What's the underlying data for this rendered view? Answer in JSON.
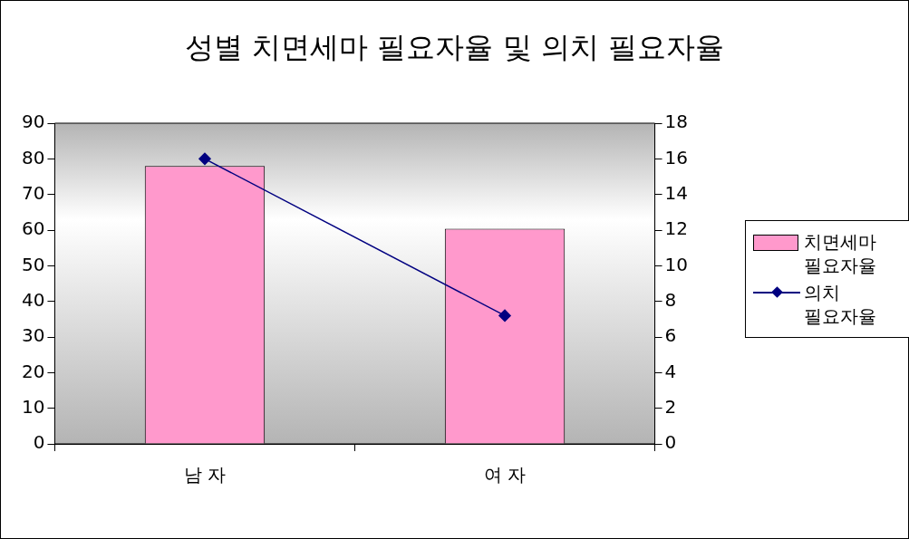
{
  "chart_data": {
    "type": "bar",
    "title": "성별 치면세마 필요자율 및 의치 필요자율",
    "categories": [
      "남 자",
      "여 자"
    ],
    "series": [
      {
        "name": "치면세마 필요자율",
        "color": "#ff99cc",
        "values": [
          78,
          60.4
        ]
      },
      {
        "name": "의치 필요자율",
        "type": "line",
        "color": "#000080",
        "axis": "y2",
        "marker": "diamond",
        "values": [
          16,
          7.2
        ]
      }
    ],
    "ylim": [
      0,
      90
    ],
    "yticks": [
      0,
      10,
      20,
      30,
      40,
      50,
      60,
      70,
      80,
      90
    ],
    "y2lim": [
      0,
      18
    ],
    "y2ticks": [
      0,
      2,
      4,
      6,
      8,
      10,
      12,
      14,
      16,
      18
    ],
    "grid": false,
    "legend": "right"
  }
}
